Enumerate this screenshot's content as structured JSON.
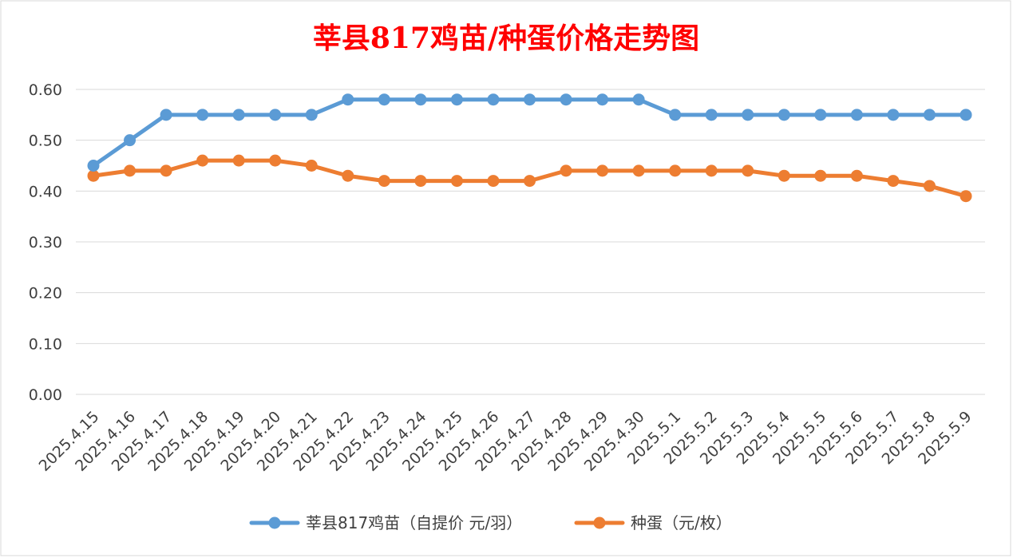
{
  "chart_data": {
    "type": "line",
    "title": "莘县817鸡苗/种蛋价格走势图",
    "xlabel": "",
    "ylabel": "",
    "ylim": [
      0,
      0.6
    ],
    "yticks": [
      "0.00",
      "0.10",
      "0.20",
      "0.30",
      "0.40",
      "0.50",
      "0.60"
    ],
    "grid": true,
    "legend_position": "bottom",
    "x": [
      "2025.4.15",
      "2025.4.16",
      "2025.4.17",
      "2025.4.18",
      "2025.4.19",
      "2025.4.20",
      "2025.4.21",
      "2025.4.22",
      "2025.4.23",
      "2025.4.24",
      "2025.4.25",
      "2025.4.26",
      "2025.4.27",
      "2025.4.28",
      "2025.4.29",
      "2025.4.30",
      "2025.5.1",
      "2025.5.2",
      "2025.5.3",
      "2025.5.4",
      "2025.5.5",
      "2025.5.6",
      "2025.5.7",
      "2025.5.8",
      "2025.5.9"
    ],
    "series": [
      {
        "name": "莘县817鸡苗（自提价 元/羽）",
        "color": "#5b9bd5",
        "values": [
          0.45,
          0.5,
          0.55,
          0.55,
          0.55,
          0.55,
          0.55,
          0.58,
          0.58,
          0.58,
          0.58,
          0.58,
          0.58,
          0.58,
          0.58,
          0.58,
          0.55,
          0.55,
          0.55,
          0.55,
          0.55,
          0.55,
          0.55,
          0.55,
          0.55
        ]
      },
      {
        "name": "种蛋（元/枚）",
        "color": "#ed7d31",
        "values": [
          0.43,
          0.44,
          0.44,
          0.46,
          0.46,
          0.46,
          0.45,
          0.43,
          0.42,
          0.42,
          0.42,
          0.42,
          0.42,
          0.44,
          0.44,
          0.44,
          0.44,
          0.44,
          0.44,
          0.43,
          0.43,
          0.43,
          0.42,
          0.41,
          0.39
        ]
      }
    ]
  }
}
